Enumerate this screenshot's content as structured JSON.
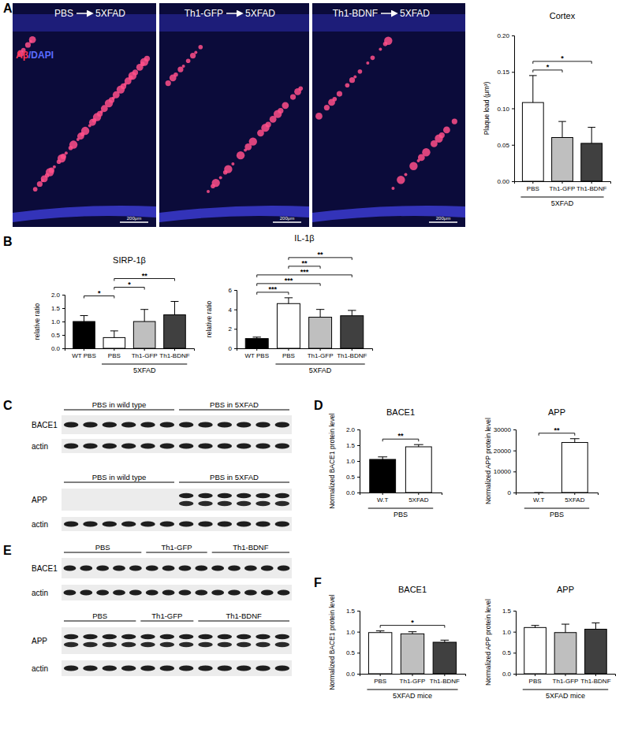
{
  "chart_data": [
    {
      "type": "bar",
      "title": "Cortex",
      "y_label": "Plaque load (μm³)",
      "categories": [
        "PBS",
        "Th1-GFP",
        "Th1-BDNF"
      ],
      "values": [
        0.108,
        0.06,
        0.052
      ],
      "errors": [
        0.037,
        0.022,
        0.022
      ],
      "colors": [
        "#ffffff",
        "#bfbfbf",
        "#404040"
      ],
      "ylim": [
        0,
        0.2
      ],
      "yticks": [
        {
          "value": 0,
          "label": "0.00"
        },
        {
          "value": 0.05,
          "label": "0.05"
        },
        {
          "value": 0.1,
          "label": "0.10"
        },
        {
          "value": 0.15,
          "label": "0.15"
        },
        {
          "value": 0.2,
          "label": "0.20"
        }
      ],
      "group": {
        "label": "5XFAD",
        "categories": [
          "PBS",
          "Th1-GFP",
          "Th1-BDNF"
        ]
      },
      "significance": [
        {
          "from": "PBS",
          "to": "Th1-GFP",
          "label": "*"
        },
        {
          "from": "PBS",
          "to": "Th1-BDNF",
          "label": "*"
        }
      ]
    },
    {
      "type": "bar",
      "title": "SIRP-1β",
      "y_label": "relative ratio",
      "categories": [
        "WT PBS",
        "PBS",
        "Th1-GFP",
        "Th1-BDNF"
      ],
      "values": [
        1.0,
        0.4,
        1.0,
        1.25
      ],
      "errors": [
        0.22,
        0.25,
        0.45,
        0.5
      ],
      "colors": [
        "#000000",
        "#ffffff",
        "#bfbfbf",
        "#404040"
      ],
      "ylim": [
        0,
        2
      ],
      "yticks": [
        {
          "value": 0,
          "label": "0.0"
        },
        {
          "value": 0.5,
          "label": "0.5"
        },
        {
          "value": 1,
          "label": "1.0"
        },
        {
          "value": 1.5,
          "label": "1.5"
        },
        {
          "value": 2,
          "label": "2.0"
        }
      ],
      "group": {
        "label": "5XFAD",
        "categories": [
          "PBS",
          "Th1-GFP",
          "Th1-BDNF"
        ]
      },
      "significance": [
        {
          "from": "WT PBS",
          "to": "PBS",
          "label": "*"
        },
        {
          "from": "PBS",
          "to": "Th1-GFP",
          "label": "*"
        },
        {
          "from": "PBS",
          "to": "Th1-BDNF",
          "label": "**"
        }
      ]
    },
    {
      "type": "bar",
      "title": "IL-1β",
      "y_label": "relative ratio",
      "categories": [
        "WT PBS",
        "PBS",
        "Th1-GFP",
        "Th1-BDNF"
      ],
      "values": [
        1.0,
        4.6,
        3.2,
        3.35
      ],
      "errors": [
        0.15,
        0.6,
        0.8,
        0.55
      ],
      "colors": [
        "#000000",
        "#ffffff",
        "#bfbfbf",
        "#404040"
      ],
      "ylim": [
        0,
        6
      ],
      "yticks": [
        0,
        2,
        4,
        6
      ],
      "group": {
        "label": "5XFAD",
        "categories": [
          "PBS",
          "Th1-GFP",
          "Th1-BDNF"
        ]
      },
      "significance": [
        {
          "from": "WT PBS",
          "to": "PBS",
          "label": "***"
        },
        {
          "from": "WT PBS",
          "to": "Th1-GFP",
          "label": "***"
        },
        {
          "from": "WT PBS",
          "to": "Th1-BDNF",
          "label": "***"
        },
        {
          "from": "PBS",
          "to": "Th1-GFP",
          "label": "**"
        },
        {
          "from": "PBS",
          "to": "Th1-BDNF",
          "label": "**"
        }
      ]
    },
    {
      "type": "bar",
      "title": "BACE1",
      "y_label": "Normalized BACE1 protein level",
      "categories": [
        "W.T",
        "5XFAD"
      ],
      "values": [
        1.05,
        1.45
      ],
      "errors": [
        0.08,
        0.07
      ],
      "colors": [
        "#000000",
        "#ffffff"
      ],
      "ylim": [
        0,
        2
      ],
      "yticks": [
        {
          "value": 0,
          "label": "0.0"
        },
        {
          "value": 0.5,
          "label": "0.5"
        },
        {
          "value": 1,
          "label": "1.0"
        },
        {
          "value": 1.5,
          "label": "1.5"
        },
        {
          "value": 2,
          "label": "2.0"
        }
      ],
      "group": {
        "label": "PBS",
        "categories": [
          "W.T",
          "5XFAD"
        ]
      },
      "significance": [
        {
          "from": "W.T",
          "to": "5XFAD",
          "label": "**"
        }
      ]
    },
    {
      "type": "bar",
      "title": "APP",
      "y_label": "Normalized APP protein level",
      "categories": [
        "W.T",
        "5XFAD"
      ],
      "values": [
        0,
        23800
      ],
      "errors": [
        0,
        1800
      ],
      "colors": [
        "#000000",
        "#ffffff"
      ],
      "ylim": [
        0,
        30000
      ],
      "yticks": [
        0,
        10000,
        20000,
        30000
      ],
      "group": {
        "label": "PBS",
        "categories": [
          "W.T",
          "5XFAD"
        ]
      },
      "significance": [
        {
          "from": "W.T",
          "to": "5XFAD",
          "label": "**"
        }
      ]
    },
    {
      "type": "bar",
      "title": "BACE1",
      "y_label": "Normalized BACE1 protein level",
      "categories": [
        "PBS",
        "Th1-GFP",
        "Th1-BDNF"
      ],
      "values": [
        0.98,
        0.95,
        0.75
      ],
      "errors": [
        0.04,
        0.05,
        0.05
      ],
      "colors": [
        "#ffffff",
        "#bfbfbf",
        "#404040"
      ],
      "ylim": [
        0,
        1.5
      ],
      "yticks": [
        {
          "value": 0,
          "label": "0.0"
        },
        {
          "value": 0.5,
          "label": "0.5"
        },
        {
          "value": 1,
          "label": "1.0"
        },
        {
          "value": 1.5,
          "label": "1.5"
        }
      ],
      "group": {
        "label": "5XFAD mice",
        "categories": [
          "PBS",
          "Th1-GFP",
          "Th1-BDNF"
        ]
      },
      "significance": [
        {
          "from": "PBS",
          "to": "Th1-BDNF",
          "label": "*"
        }
      ]
    },
    {
      "type": "bar",
      "title": "APP",
      "y_label": "Normalized APP protein level",
      "categories": [
        "PBS",
        "Th1-GFP",
        "Th1-BDNF"
      ],
      "values": [
        1.1,
        0.98,
        1.06
      ],
      "errors": [
        0.05,
        0.2,
        0.15
      ],
      "colors": [
        "#ffffff",
        "#bfbfbf",
        "#404040"
      ],
      "ylim": [
        0,
        1.5
      ],
      "yticks": [
        {
          "value": 0,
          "label": "0.0"
        },
        {
          "value": 0.5,
          "label": "0.5"
        },
        {
          "value": 1,
          "label": "1.0"
        },
        {
          "value": 1.5,
          "label": "1.5"
        }
      ],
      "group": {
        "label": "5XFAD mice",
        "categories": [
          "PBS",
          "Th1-GFP",
          "Th1-BDNF"
        ]
      },
      "significance": []
    }
  ],
  "panels": [
    "A",
    "B",
    "C",
    "D",
    "E",
    "F"
  ],
  "images": {
    "titles": [
      "PBS",
      "Th1-GFP",
      "Th1-BDNF"
    ],
    "recipient": "5XFAD",
    "stain": [
      "Aβ",
      "/DAPI"
    ],
    "scale_bar": "200μm"
  },
  "blots": [
    {
      "groups": [
        "PBS in wild type",
        "PBS in 5XFAD"
      ],
      "rows": [
        "BACE1",
        "actin"
      ]
    },
    {
      "groups": [
        "PBS in wild type",
        "PBS in 5XFAD"
      ],
      "rows": [
        "APP",
        "actin"
      ]
    },
    {
      "groups": [
        "PBS",
        "Th1-GFP",
        "Th1-BDNF"
      ],
      "rows": [
        "BACE1",
        "actin"
      ]
    },
    {
      "groups": [
        "PBS",
        "Th1-GFP",
        "Th1-BDNF"
      ],
      "rows": [
        "APP",
        "actin"
      ]
    }
  ]
}
